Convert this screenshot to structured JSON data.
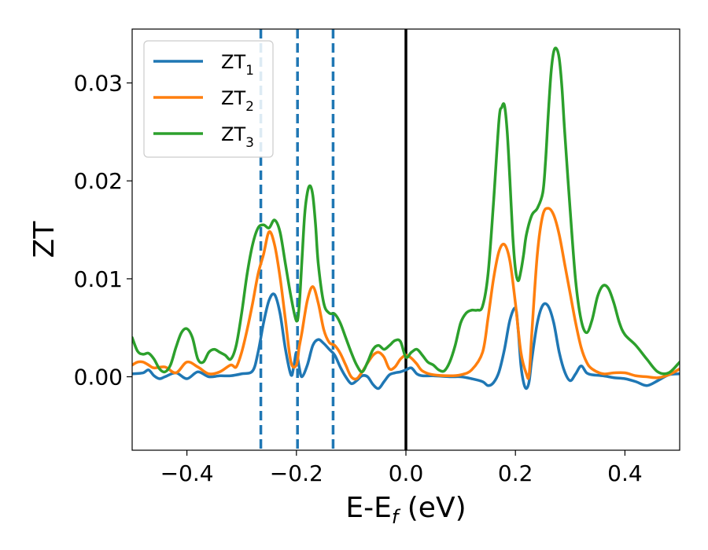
{
  "chart_data": {
    "type": "line",
    "xlabel": "E-E",
    "xlabel_sub": "f",
    "xlabel_unit": " (eV)",
    "ylabel": "ZT",
    "xlim": [
      -0.5,
      0.5
    ],
    "ylim": [
      -0.0075,
      0.0355
    ],
    "xticks": [
      -0.4,
      -0.2,
      0.0,
      0.2,
      0.4
    ],
    "xtick_labels": [
      "−0.4",
      "−0.2",
      "0.0",
      "0.2",
      "0.4"
    ],
    "yticks": [
      0.0,
      0.01,
      0.02,
      0.03
    ],
    "ytick_labels": [
      "0.00",
      "0.01",
      "0.02",
      "0.03"
    ],
    "grid": false,
    "legend_position": "top-left",
    "vlines": [
      {
        "x": 0.0,
        "style": "solid",
        "color": "#000000"
      },
      {
        "x": -0.265,
        "style": "dashed",
        "color": "#1f77b4"
      },
      {
        "x": -0.198,
        "style": "dashed",
        "color": "#1f77b4"
      },
      {
        "x": -0.133,
        "style": "dashed",
        "color": "#1f77b4"
      }
    ],
    "series": [
      {
        "name": "ZT",
        "sub": "1",
        "color": "#1f77b4",
        "x": [
          -0.5,
          -0.48,
          -0.47,
          -0.46,
          -0.45,
          -0.44,
          -0.42,
          -0.4,
          -0.38,
          -0.36,
          -0.34,
          -0.32,
          -0.3,
          -0.28,
          -0.27,
          -0.26,
          -0.25,
          -0.24,
          -0.23,
          -0.22,
          -0.21,
          -0.205,
          -0.2,
          -0.195,
          -0.19,
          -0.18,
          -0.17,
          -0.16,
          -0.15,
          -0.14,
          -0.13,
          -0.12,
          -0.11,
          -0.1,
          -0.09,
          -0.08,
          -0.07,
          -0.06,
          -0.05,
          -0.04,
          -0.03,
          -0.02,
          -0.01,
          0.0,
          0.01,
          0.02,
          0.03,
          0.05,
          0.08,
          0.1,
          0.12,
          0.14,
          0.15,
          0.16,
          0.17,
          0.18,
          0.19,
          0.2,
          0.205,
          0.21,
          0.215,
          0.22,
          0.225,
          0.23,
          0.24,
          0.25,
          0.26,
          0.27,
          0.28,
          0.29,
          0.3,
          0.31,
          0.32,
          0.33,
          0.34,
          0.36,
          0.38,
          0.4,
          0.42,
          0.44,
          0.46,
          0.48,
          0.5
        ],
        "y": [
          0.0003,
          0.0004,
          0.0007,
          0.0001,
          -0.0002,
          0.0,
          0.0004,
          -0.0002,
          0.0005,
          0.0,
          0.0001,
          0.0001,
          0.0003,
          0.0006,
          0.0025,
          0.0055,
          0.0078,
          0.0084,
          0.0065,
          0.0028,
          0.0002,
          0.001,
          0.0025,
          0.001,
          0.0,
          0.0012,
          0.0032,
          0.0038,
          0.0034,
          0.0028,
          0.0022,
          0.001,
          0.0,
          -0.0007,
          -0.0004,
          0.0001,
          0.0,
          -0.0008,
          -0.0012,
          -0.0005,
          0.0002,
          0.0004,
          0.0005,
          0.0007,
          0.0009,
          0.0003,
          0.0001,
          0.0001,
          0.0,
          0.0,
          -0.0002,
          -0.0005,
          -0.0009,
          -0.0006,
          0.0005,
          0.0028,
          0.0058,
          0.007,
          0.0048,
          0.0012,
          -0.0006,
          -0.0012,
          -0.0005,
          0.0018,
          0.0055,
          0.0073,
          0.0072,
          0.0055,
          0.0025,
          0.0005,
          -0.0004,
          0.0003,
          0.0011,
          0.0004,
          0.0002,
          0.0001,
          -0.0001,
          -0.0002,
          -0.0005,
          -0.0009,
          -0.0004,
          0.0002,
          0.0003
        ]
      },
      {
        "name": "ZT",
        "sub": "2",
        "color": "#ff7f0e",
        "x": [
          -0.5,
          -0.49,
          -0.48,
          -0.47,
          -0.46,
          -0.44,
          -0.42,
          -0.4,
          -0.38,
          -0.36,
          -0.34,
          -0.32,
          -0.31,
          -0.3,
          -0.29,
          -0.28,
          -0.27,
          -0.26,
          -0.25,
          -0.24,
          -0.23,
          -0.22,
          -0.21,
          -0.2,
          -0.195,
          -0.19,
          -0.18,
          -0.17,
          -0.16,
          -0.15,
          -0.14,
          -0.13,
          -0.12,
          -0.11,
          -0.1,
          -0.09,
          -0.08,
          -0.07,
          -0.06,
          -0.05,
          -0.04,
          -0.03,
          -0.02,
          -0.01,
          0.0,
          0.01,
          0.02,
          0.03,
          0.05,
          0.08,
          0.1,
          0.12,
          0.14,
          0.15,
          0.16,
          0.17,
          0.18,
          0.19,
          0.2,
          0.21,
          0.22,
          0.225,
          0.23,
          0.24,
          0.25,
          0.26,
          0.27,
          0.28,
          0.29,
          0.3,
          0.31,
          0.32,
          0.33,
          0.34,
          0.36,
          0.38,
          0.4,
          0.42,
          0.44,
          0.46,
          0.48,
          0.5
        ],
        "y": [
          0.0012,
          0.0015,
          0.0015,
          0.0012,
          0.0009,
          0.001,
          0.0004,
          0.0015,
          0.001,
          0.0003,
          0.0005,
          0.0012,
          0.001,
          0.0025,
          0.0048,
          0.0075,
          0.0105,
          0.0125,
          0.0148,
          0.0135,
          0.0102,
          0.0058,
          0.0015,
          0.0012,
          0.003,
          0.0045,
          0.0078,
          0.0092,
          0.0075,
          0.0048,
          0.0035,
          0.0032,
          0.0024,
          0.0012,
          0.0,
          -0.0002,
          0.0005,
          0.0014,
          0.0022,
          0.0025,
          0.002,
          0.0008,
          0.001,
          0.0018,
          0.0022,
          0.0019,
          0.0013,
          0.0006,
          0.0002,
          0.0001,
          0.0002,
          0.0007,
          0.0025,
          0.006,
          0.01,
          0.0128,
          0.0135,
          0.0118,
          0.0075,
          0.0025,
          0.0003,
          0.0002,
          0.0045,
          0.0125,
          0.0165,
          0.0172,
          0.0165,
          0.0145,
          0.0115,
          0.0085,
          0.0055,
          0.003,
          0.0015,
          0.0008,
          0.0003,
          0.0004,
          0.0004,
          0.0001,
          0.0,
          -0.0001,
          0.0002,
          0.0008
        ]
      },
      {
        "name": "ZT",
        "sub": "3",
        "color": "#2ca02c",
        "x": [
          -0.5,
          -0.49,
          -0.48,
          -0.47,
          -0.46,
          -0.45,
          -0.44,
          -0.43,
          -0.42,
          -0.41,
          -0.4,
          -0.39,
          -0.38,
          -0.37,
          -0.36,
          -0.35,
          -0.34,
          -0.33,
          -0.32,
          -0.31,
          -0.3,
          -0.29,
          -0.28,
          -0.27,
          -0.26,
          -0.25,
          -0.24,
          -0.23,
          -0.22,
          -0.21,
          -0.2,
          -0.195,
          -0.19,
          -0.185,
          -0.18,
          -0.175,
          -0.17,
          -0.165,
          -0.16,
          -0.15,
          -0.14,
          -0.13,
          -0.12,
          -0.11,
          -0.1,
          -0.09,
          -0.08,
          -0.07,
          -0.06,
          -0.05,
          -0.04,
          -0.03,
          -0.02,
          -0.01,
          0.0,
          0.01,
          0.02,
          0.03,
          0.04,
          0.05,
          0.06,
          0.07,
          0.08,
          0.09,
          0.1,
          0.11,
          0.12,
          0.13,
          0.14,
          0.15,
          0.16,
          0.17,
          0.175,
          0.18,
          0.185,
          0.19,
          0.195,
          0.2,
          0.205,
          0.21,
          0.215,
          0.22,
          0.23,
          0.24,
          0.25,
          0.255,
          0.26,
          0.265,
          0.27,
          0.275,
          0.28,
          0.285,
          0.29,
          0.3,
          0.31,
          0.32,
          0.33,
          0.34,
          0.35,
          0.36,
          0.37,
          0.38,
          0.39,
          0.4,
          0.42,
          0.44,
          0.46,
          0.48,
          0.5
        ],
        "y": [
          0.004,
          0.0026,
          0.0023,
          0.0024,
          0.0018,
          0.0008,
          0.0005,
          0.0012,
          0.003,
          0.0045,
          0.0049,
          0.004,
          0.0018,
          0.0015,
          0.0025,
          0.0028,
          0.0025,
          0.0022,
          0.0018,
          0.0032,
          0.0065,
          0.0105,
          0.0135,
          0.0152,
          0.0155,
          0.0152,
          0.016,
          0.0148,
          0.0115,
          0.0082,
          0.0057,
          0.0072,
          0.0118,
          0.0165,
          0.0188,
          0.0195,
          0.0185,
          0.0155,
          0.0115,
          0.0075,
          0.0065,
          0.0064,
          0.0055,
          0.004,
          0.0025,
          0.0012,
          0.0005,
          0.0015,
          0.0028,
          0.0032,
          0.0028,
          0.0032,
          0.0037,
          0.0036,
          0.002,
          0.0025,
          0.0028,
          0.0022,
          0.0015,
          0.0012,
          0.0007,
          0.0006,
          0.0015,
          0.0032,
          0.0055,
          0.0065,
          0.0068,
          0.0068,
          0.0072,
          0.0105,
          0.0178,
          0.0262,
          0.0275,
          0.0277,
          0.025,
          0.02,
          0.0145,
          0.011,
          0.0098,
          0.0108,
          0.0125,
          0.0145,
          0.0165,
          0.0172,
          0.0188,
          0.022,
          0.0268,
          0.031,
          0.0332,
          0.0335,
          0.0325,
          0.0295,
          0.025,
          0.017,
          0.0098,
          0.0058,
          0.0045,
          0.0058,
          0.0082,
          0.0093,
          0.009,
          0.0075,
          0.0055,
          0.0043,
          0.0032,
          0.0018,
          0.0005,
          0.0004,
          0.0015
        ]
      }
    ]
  }
}
